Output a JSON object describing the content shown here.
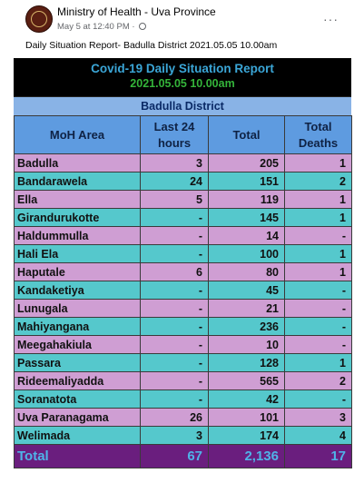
{
  "post": {
    "page_name": "Ministry of Health - Uva Province",
    "time": "May 5 at 12:40 PM · ",
    "more": "···",
    "caption": "Daily Situation Report- Badulla District 2021.05.05  10.00am"
  },
  "report": {
    "title": "Covid-19 Daily Situation Report",
    "date": "2021.05.05     10.00am",
    "district": "Badulla District",
    "headers": [
      "MoH Area",
      "Last 24 hours",
      "Total",
      "Total Deaths"
    ],
    "rows": [
      {
        "area": "Badulla",
        "last24": "3",
        "total": "205",
        "deaths": "1"
      },
      {
        "area": "Bandarawela",
        "last24": "24",
        "total": "151",
        "deaths": "2"
      },
      {
        "area": "Ella",
        "last24": "5",
        "total": "119",
        "deaths": "1"
      },
      {
        "area": "Girandurukotte",
        "last24": "-",
        "total": "145",
        "deaths": "1"
      },
      {
        "area": "Haldummulla",
        "last24": "-",
        "total": "14",
        "deaths": "-"
      },
      {
        "area": "Hali Ela",
        "last24": "-",
        "total": "100",
        "deaths": "1"
      },
      {
        "area": "Haputale",
        "last24": "6",
        "total": "80",
        "deaths": "1"
      },
      {
        "area": "Kandaketiya",
        "last24": "-",
        "total": "45",
        "deaths": "-"
      },
      {
        "area": "Lunugala",
        "last24": "-",
        "total": "21",
        "deaths": "-"
      },
      {
        "area": "Mahiyangana",
        "last24": "-",
        "total": "236",
        "deaths": "-"
      },
      {
        "area": "Meegahakiula",
        "last24": "-",
        "total": "10",
        "deaths": "-"
      },
      {
        "area": "Passara",
        "last24": "-",
        "total": "128",
        "deaths": "1"
      },
      {
        "area": "Rideemaliyadda",
        "last24": "-",
        "total": "565",
        "deaths": "2"
      },
      {
        "area": "Soranatota",
        "last24": "-",
        "total": "42",
        "deaths": "-"
      },
      {
        "area": "Uva Paranagama",
        "last24": "26",
        "total": "101",
        "deaths": "3"
      },
      {
        "area": "Welimada",
        "last24": "3",
        "total": "174",
        "deaths": "4"
      }
    ],
    "total": {
      "area": "Total",
      "last24": "67",
      "total": "2,136",
      "deaths": "17"
    }
  }
}
